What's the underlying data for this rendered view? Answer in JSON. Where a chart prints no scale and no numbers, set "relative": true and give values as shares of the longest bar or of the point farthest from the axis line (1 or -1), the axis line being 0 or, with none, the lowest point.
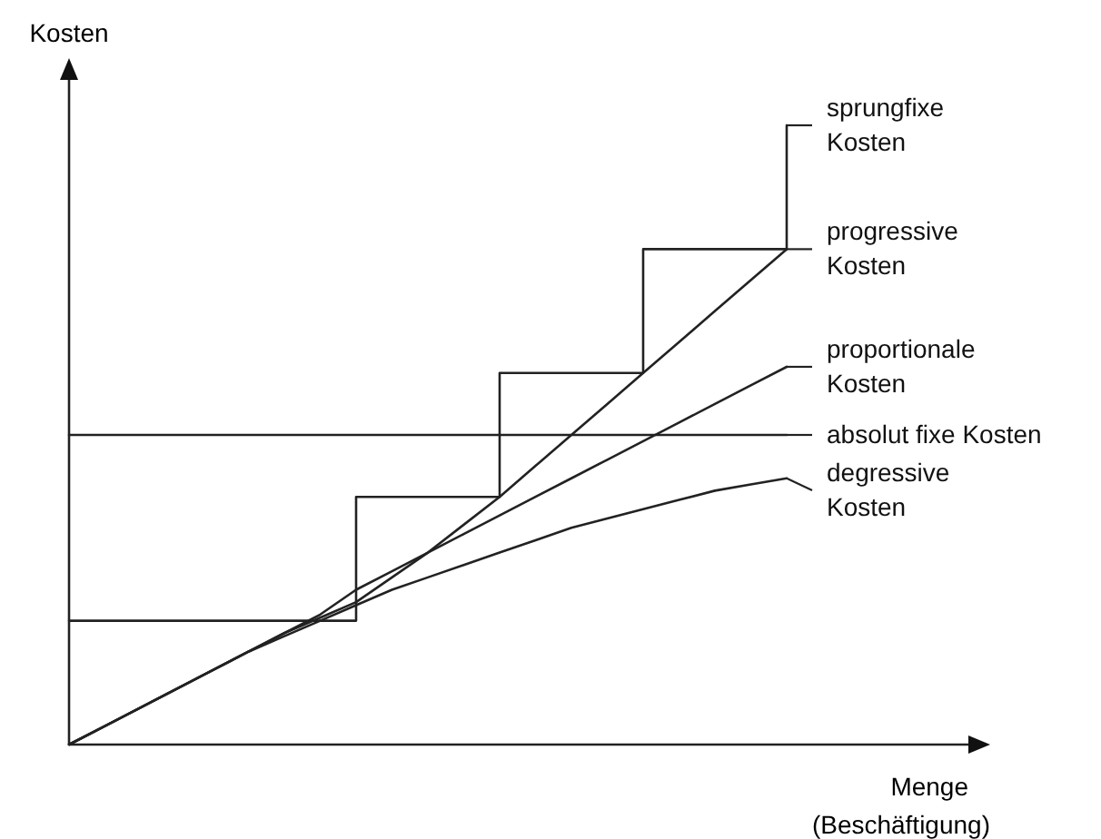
{
  "chart_data": {
    "type": "line",
    "relative": true,
    "ylabel": "Kosten",
    "xlabel": "Menge\n(Beschäftigung)",
    "legend": "right",
    "marker": "none",
    "line_style": "solid",
    "categories": [
      null,
      null,
      null,
      null,
      null,
      null,
      null,
      null,
      null,
      null,
      null,
      null,
      null,
      null,
      null,
      null,
      null,
      null,
      null,
      null,
      null
    ],
    "series": [
      {
        "name": "sprungfixe\nKosten",
        "type": "step",
        "color": "#222222",
        "values": [
          0.2,
          0.2,
          0.2,
          0.2,
          0.2,
          0.2,
          0.2,
          0.2,
          0.4,
          0.4,
          0.4,
          0.4,
          0.6,
          0.6,
          0.6,
          0.6,
          0.8,
          0.8,
          0.8,
          0.8,
          1.0
        ]
      },
      {
        "name": "progressive\nKosten",
        "color": "#222222",
        "values": [
          0,
          0.03,
          0.06,
          0.09,
          0.12,
          0.15,
          0.18,
          0.205,
          0.23,
          0.27,
          0.31,
          0.355,
          0.4,
          0.45,
          0.5,
          0.55,
          0.6,
          0.65,
          0.7,
          0.75,
          0.8
        ]
      },
      {
        "name": "proportionale\nKosten",
        "color": "#222222",
        "values": [
          0,
          0.03,
          0.06,
          0.09,
          0.12,
          0.15,
          0.18,
          0.21,
          0.25,
          0.28,
          0.31,
          0.34,
          0.37,
          0.4,
          0.43,
          0.46,
          0.49,
          0.52,
          0.55,
          0.58,
          0.61
        ]
      },
      {
        "name": "absolut fixe Kosten",
        "color": "#222222",
        "values": [
          0.5,
          0.5,
          0.5,
          0.5,
          0.5,
          0.5,
          0.5,
          0.5,
          0.5,
          0.5,
          0.5,
          0.5,
          0.5,
          0.5,
          0.5,
          0.5,
          0.5,
          0.5,
          0.5,
          0.5,
          0.5
        ]
      },
      {
        "name": "degressive\nKosten",
        "color": "#222222",
        "values": [
          0,
          0.03,
          0.06,
          0.09,
          0.12,
          0.15,
          0.175,
          0.2,
          0.225,
          0.25,
          0.27,
          0.29,
          0.31,
          0.33,
          0.35,
          0.365,
          0.38,
          0.395,
          0.41,
          0.42,
          0.43
        ]
      }
    ]
  }
}
